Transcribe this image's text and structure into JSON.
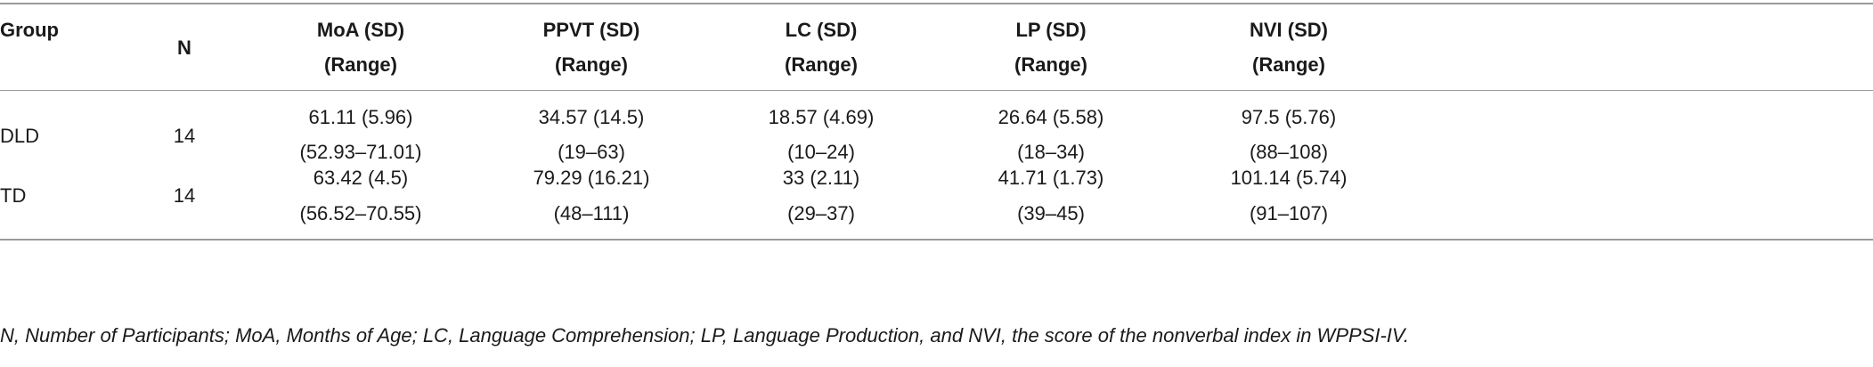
{
  "table": {
    "headers": [
      {
        "line1": "Group",
        "line2": ""
      },
      {
        "line1": "N",
        "line2": ""
      },
      {
        "line1": "MoA (SD)",
        "line2": "(Range)"
      },
      {
        "line1": "PPVT (SD)",
        "line2": "(Range)"
      },
      {
        "line1": "LC (SD)",
        "line2": "(Range)"
      },
      {
        "line1": "LP (SD)",
        "line2": "(Range)"
      },
      {
        "line1": "NVI (SD)",
        "line2": "(Range)"
      }
    ],
    "rows": [
      {
        "group": "DLD",
        "n": "14",
        "cells": [
          {
            "mean_sd": "61.11 (5.96)",
            "range": "(52.93–71.01)"
          },
          {
            "mean_sd": "34.57 (14.5)",
            "range": "(19–63)"
          },
          {
            "mean_sd": "18.57 (4.69)",
            "range": "(10–24)"
          },
          {
            "mean_sd": "26.64 (5.58)",
            "range": "(18–34)"
          },
          {
            "mean_sd": "97.5 (5.76)",
            "range": "(88–108)"
          }
        ]
      },
      {
        "group": "TD",
        "n": "14",
        "cells": [
          {
            "mean_sd": "63.42 (4.5)",
            "range": "(56.52–70.55)"
          },
          {
            "mean_sd": "79.29 (16.21)",
            "range": "(48–111)"
          },
          {
            "mean_sd": "33 (2.11)",
            "range": "(29–37)"
          },
          {
            "mean_sd": "41.71 (1.73)",
            "range": "(39–45)"
          },
          {
            "mean_sd": "101.14 (5.74)",
            "range": "(91–107)"
          }
        ]
      }
    ],
    "footnote": "N, Number of Participants; MoA, Months of Age; LC, Language Comprehension; LP, Language Production, and NVI, the score of the nonverbal index in WPPSI-IV."
  }
}
